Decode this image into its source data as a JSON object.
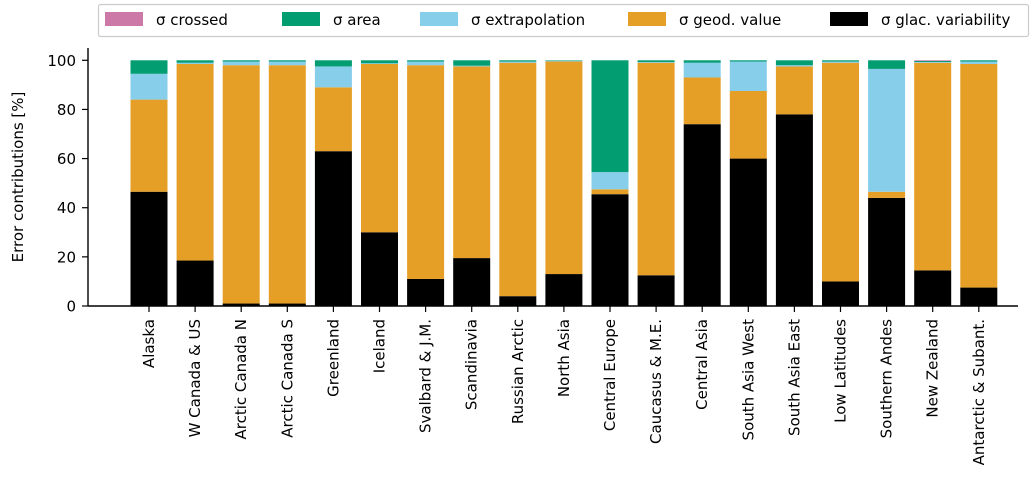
{
  "chart_data": {
    "type": "bar",
    "stacked": true,
    "ylabel": "Error contributions [%]",
    "ylim": [
      0,
      105
    ],
    "yticks": [
      0,
      20,
      40,
      60,
      80,
      100
    ],
    "legend_position": "top",
    "categories": [
      "Alaska",
      "W Canada & US",
      "Arctic Canada N",
      "Arctic Canada S",
      "Greenland",
      "Iceland",
      "Svalbard & J.M.",
      "Scandinavia",
      "Russian Arctic",
      "North Asia",
      "Central Europe",
      "Caucasus & M.E.",
      "Central Asia",
      "South Asia West",
      "South Asia East",
      "Low Latitudes",
      "Southern Andes",
      "New Zealand",
      "Antarctic & Subant."
    ],
    "series": [
      {
        "name": "σ glac. variability",
        "color": "#000000",
        "values": [
          46.5,
          18.5,
          1,
          1,
          63,
          30,
          11,
          19.5,
          4,
          13,
          45.5,
          12.5,
          74,
          60,
          78,
          10,
          44,
          14.5,
          7.5
        ]
      },
      {
        "name": "σ geod. value",
        "color": "#e69f26",
        "values": [
          37.5,
          80,
          97,
          97,
          26,
          68.5,
          87,
          78,
          95,
          86.5,
          2,
          86.5,
          19,
          27.5,
          19.5,
          89,
          2.5,
          84.5,
          91
        ]
      },
      {
        "name": "σ extrapolation",
        "color": "#87ceeb",
        "values": [
          10.5,
          0.5,
          1.5,
          1.5,
          8.5,
          0.3,
          1.5,
          0.3,
          0.5,
          0.3,
          7,
          0.3,
          6,
          12,
          0.5,
          0.5,
          50,
          0.3,
          1
        ]
      },
      {
        "name": "σ area",
        "color": "#039d72",
        "values": [
          5.5,
          1,
          0.5,
          0.5,
          2.5,
          1.2,
          0.5,
          2.2,
          0.5,
          0.2,
          45.5,
          0.7,
          1,
          0.5,
          2,
          0.5,
          3.5,
          0.4,
          0.5
        ]
      },
      {
        "name": "σ crossed",
        "color": "#cc79a7",
        "values": [
          0,
          0,
          0,
          0,
          0,
          0,
          0,
          0,
          0,
          0,
          0,
          0,
          0,
          0,
          0,
          0,
          0,
          0.3,
          0
        ]
      }
    ],
    "legend_order": [
      "σ crossed",
      "σ area",
      "σ extrapolation",
      "σ geod. value",
      "σ glac. variability"
    ]
  }
}
